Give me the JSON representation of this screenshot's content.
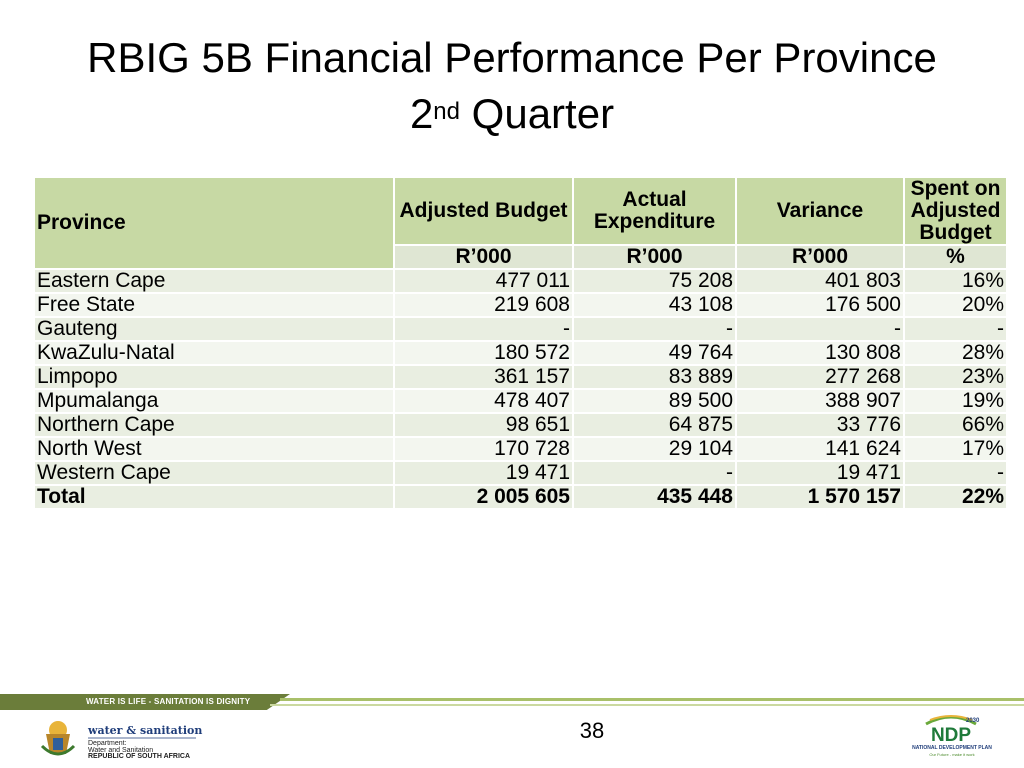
{
  "title": {
    "line1": "RBIG 5B Financial Performance Per Province",
    "line2_base": "2",
    "line2_sup": "nd",
    "line2_rest": " Quarter"
  },
  "table": {
    "headers": {
      "province": "Province",
      "adjusted_budget": "Adjusted Budget",
      "actual_expenditure": "Actual Expenditure",
      "variance": "Variance",
      "spent": "Spent on Adjusted Budget"
    },
    "units": {
      "adjusted_budget": "R’000",
      "actual_expenditure": "R’000",
      "variance": "R’000",
      "spent": "%"
    },
    "rows": [
      {
        "province": "Eastern Cape",
        "budget": "477 011",
        "expenditure": "75 208",
        "variance": "401 803",
        "spent": "16%"
      },
      {
        "province": "Free State",
        "budget": "219 608",
        "expenditure": "43 108",
        "variance": "176 500",
        "spent": "20%"
      },
      {
        "province": "Gauteng",
        "budget": "-",
        "expenditure": "-",
        "variance": "-",
        "spent": "-"
      },
      {
        "province": "KwaZulu-Natal",
        "budget": "180 572",
        "expenditure": "49 764",
        "variance": "130 808",
        "spent": "28%"
      },
      {
        "province": "Limpopo",
        "budget": "361 157",
        "expenditure": "83 889",
        "variance": "277 268",
        "spent": "23%"
      },
      {
        "province": "Mpumalanga",
        "budget": "478 407",
        "expenditure": "89 500",
        "variance": "388 907",
        "spent": "19%"
      },
      {
        "province": "Northern Cape",
        "budget": "98 651",
        "expenditure": "64 875",
        "variance": "33 776",
        "spent": "66%"
      },
      {
        "province": "North West",
        "budget": "170 728",
        "expenditure": "29 104",
        "variance": "141 624",
        "spent": "17%"
      },
      {
        "province": "Western Cape",
        "budget": "19 471",
        "expenditure": "-",
        "variance": "19 471",
        "spent": "-"
      }
    ],
    "total": {
      "province": "Total",
      "budget": "2 005 605",
      "expenditure": "435 448",
      "variance": "1 570 157",
      "spent": "22%"
    }
  },
  "footer": {
    "slogan": "WATER IS LIFE - SANITATION IS DIGNITY",
    "page_number": "38",
    "dept_name": "water & sanitation",
    "dept_line1": "Department:",
    "dept_line2": "Water and Sanitation",
    "dept_line3": "REPUBLIC OF SOUTH AFRICA",
    "ndp_year": "2030",
    "ndp_mark": "NDP",
    "ndp_line1": "NATIONAL DEVELOPMENT PLAN",
    "ndp_line2": "Our Future - make it work"
  },
  "colors": {
    "header_green": "#c7d9a4",
    "row_odd": "#e9eee1",
    "row_even": "#f3f6ef",
    "footer_band": "#6b7d3a"
  }
}
